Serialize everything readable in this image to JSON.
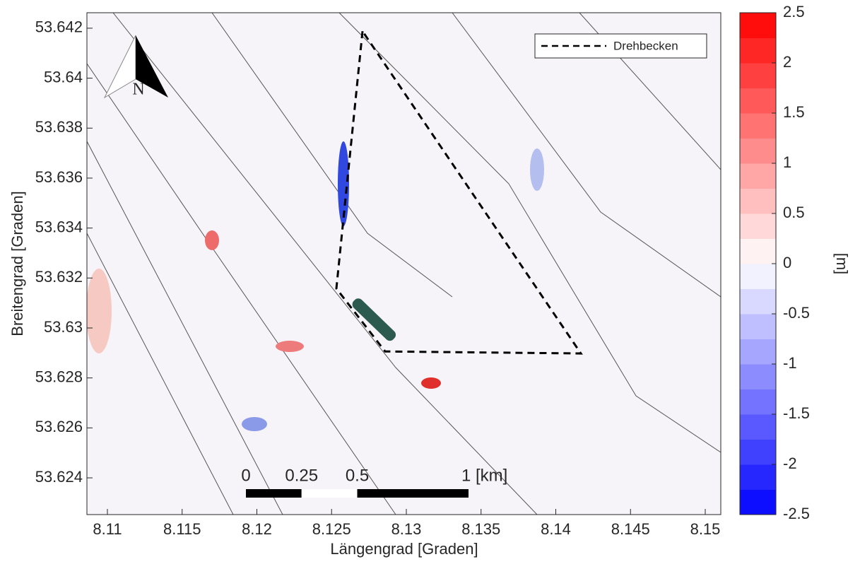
{
  "chart_data": {
    "type": "map",
    "xlabel": "Längengrad [Graden]",
    "ylabel": "Breitengrad [Graden]",
    "xlim": [
      8.10863,
      8.15104
    ],
    "ylim": [
      53.62253,
      53.64262
    ],
    "xticks": [
      8.11,
      8.115,
      8.12,
      8.125,
      8.13,
      8.135,
      8.14,
      8.145,
      8.15
    ],
    "yticks": [
      53.624,
      53.626,
      53.628,
      53.63,
      53.632,
      53.634,
      53.636,
      53.638,
      53.64,
      53.642
    ],
    "series": [
      {
        "name": "Drehbecken",
        "color": "#000000",
        "dashed": true,
        "x": [
          8.12707,
          8.12532,
          8.12858,
          8.14168,
          8.12707
        ],
        "y": [
          53.64188,
          53.63158,
          53.62906,
          53.62898,
          53.64188
        ]
      }
    ],
    "legend": "upper right",
    "colorbar": {
      "label": "[m]",
      "lim": [
        -2.5,
        2.5
      ],
      "ticks": [
        2.5,
        2,
        1.5,
        1,
        0.5,
        0,
        -0.5,
        -1,
        -1.5,
        -2,
        -2.5
      ],
      "step": 0.25,
      "colors": [
        "#0000ff",
        "#ffffff",
        "#ff0000"
      ]
    },
    "north_label": "N",
    "scale_bar": {
      "ticks": [
        0,
        0.25,
        0.5,
        {
          "value": 1,
          "label": "1 [km]"
        }
      ]
    }
  }
}
